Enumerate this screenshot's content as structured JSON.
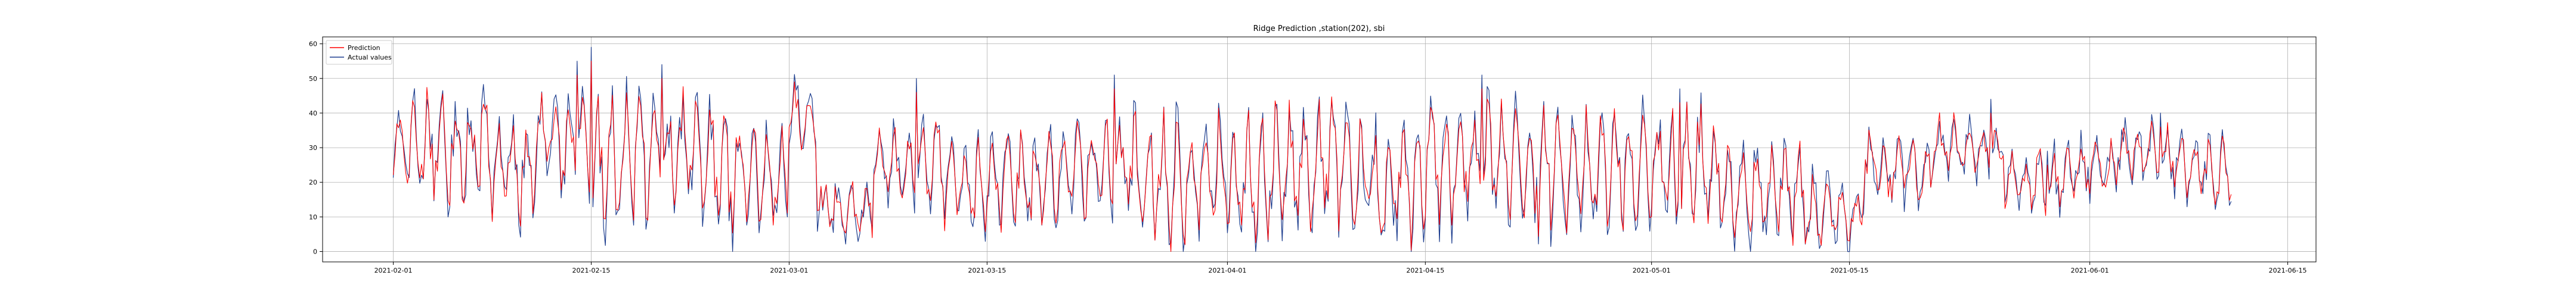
{
  "chart_data": {
    "type": "line",
    "title": "Ridge Prediction ,station(202), sbi",
    "xlabel": "",
    "ylabel": "",
    "x_range": [
      "2021-01-27",
      "2021-06-17"
    ],
    "ylim": [
      -3,
      62
    ],
    "x_ticks": [
      "2021-02-01",
      "2021-02-15",
      "2021-03-01",
      "2021-03-15",
      "2021-04-01",
      "2021-04-15",
      "2021-05-01",
      "2021-05-15",
      "2021-06-01",
      "2021-06-15"
    ],
    "y_ticks": [
      0,
      10,
      20,
      30,
      40,
      50,
      60
    ],
    "grid": true,
    "legend": "top-left",
    "data_start": "2021-02-01",
    "data_end": "2021-06-11",
    "series": [
      {
        "name": "Prediction",
        "color": "#ff0000",
        "segments": [
          {
            "from": "2021-02-01",
            "to": "2021-02-08",
            "level": 30,
            "amp": 14
          },
          {
            "from": "2021-02-08",
            "to": "2021-02-11",
            "level": 24,
            "amp": 13
          },
          {
            "from": "2021-02-11",
            "to": "2021-02-15",
            "level": 32,
            "amp": 12
          },
          {
            "from": "2021-02-15",
            "to": "2021-02-19",
            "level": 27,
            "amp": 18
          },
          {
            "from": "2021-02-19",
            "to": "2021-02-24",
            "level": 28,
            "amp": 15
          },
          {
            "from": "2021-02-24",
            "to": "2021-03-01",
            "level": 22,
            "amp": 16
          },
          {
            "from": "2021-03-01",
            "to": "2021-03-03",
            "level": 38,
            "amp": 9
          },
          {
            "from": "2021-03-03",
            "to": "2021-03-07",
            "level": 12,
            "amp": 7
          },
          {
            "from": "2021-03-07",
            "to": "2021-03-12",
            "level": 26,
            "amp": 10
          },
          {
            "from": "2021-03-12",
            "to": "2021-03-20",
            "level": 20,
            "amp": 13
          },
          {
            "from": "2021-03-20",
            "to": "2021-03-25",
            "level": 24,
            "amp": 12
          },
          {
            "from": "2021-03-25",
            "to": "2021-04-04",
            "level": 22,
            "amp": 17
          },
          {
            "from": "2021-04-04",
            "to": "2021-04-10",
            "level": 26,
            "amp": 16
          },
          {
            "from": "2021-04-10",
            "to": "2021-04-15",
            "level": 20,
            "amp": 15
          },
          {
            "from": "2021-04-15",
            "to": "2021-04-22",
            "level": 27,
            "amp": 17
          },
          {
            "from": "2021-04-22",
            "to": "2021-04-29",
            "level": 25,
            "amp": 16
          },
          {
            "from": "2021-04-29",
            "to": "2021-05-06",
            "level": 24,
            "amp": 16
          },
          {
            "from": "2021-05-06",
            "to": "2021-05-12",
            "level": 17,
            "amp": 12
          },
          {
            "from": "2021-05-12",
            "to": "2021-05-16",
            "level": 12,
            "amp": 8
          },
          {
            "from": "2021-05-16",
            "to": "2021-05-21",
            "level": 24,
            "amp": 8
          },
          {
            "from": "2021-05-21",
            "to": "2021-05-26",
            "level": 30,
            "amp": 7
          },
          {
            "from": "2021-05-26",
            "to": "2021-05-30",
            "level": 20,
            "amp": 7
          },
          {
            "from": "2021-05-30",
            "to": "2021-06-03",
            "level": 24,
            "amp": 7
          },
          {
            "from": "2021-06-03",
            "to": "2021-06-07",
            "level": 28,
            "amp": 7
          },
          {
            "from": "2021-06-07",
            "to": "2021-06-11",
            "level": 24,
            "amp": 9
          }
        ]
      },
      {
        "name": "Actual values",
        "color": "#1f3f8f",
        "segments": [
          {
            "from": "2021-02-01",
            "to": "2021-02-08",
            "level": 30,
            "amp": 16
          },
          {
            "from": "2021-02-08",
            "to": "2021-02-11",
            "level": 24,
            "amp": 15
          },
          {
            "from": "2021-02-11",
            "to": "2021-02-15",
            "level": 32,
            "amp": 14
          },
          {
            "from": "2021-02-15",
            "to": "2021-02-19",
            "level": 27,
            "amp": 20
          },
          {
            "from": "2021-02-19",
            "to": "2021-02-24",
            "level": 28,
            "amp": 17
          },
          {
            "from": "2021-02-24",
            "to": "2021-03-01",
            "level": 22,
            "amp": 18
          },
          {
            "from": "2021-03-01",
            "to": "2021-03-03",
            "level": 38,
            "amp": 10
          },
          {
            "from": "2021-03-03",
            "to": "2021-03-07",
            "level": 12,
            "amp": 8
          },
          {
            "from": "2021-03-07",
            "to": "2021-03-12",
            "level": 26,
            "amp": 11
          },
          {
            "from": "2021-03-12",
            "to": "2021-03-20",
            "level": 20,
            "amp": 15
          },
          {
            "from": "2021-03-20",
            "to": "2021-03-25",
            "level": 24,
            "amp": 14
          },
          {
            "from": "2021-03-25",
            "to": "2021-04-04",
            "level": 22,
            "amp": 19
          },
          {
            "from": "2021-04-04",
            "to": "2021-04-10",
            "level": 26,
            "amp": 18
          },
          {
            "from": "2021-04-10",
            "to": "2021-04-15",
            "level": 20,
            "amp": 17
          },
          {
            "from": "2021-04-15",
            "to": "2021-04-22",
            "level": 27,
            "amp": 19
          },
          {
            "from": "2021-04-22",
            "to": "2021-04-29",
            "level": 25,
            "amp": 18
          },
          {
            "from": "2021-04-29",
            "to": "2021-05-06",
            "level": 24,
            "amp": 18
          },
          {
            "from": "2021-05-06",
            "to": "2021-05-12",
            "level": 17,
            "amp": 14
          },
          {
            "from": "2021-05-12",
            "to": "2021-05-16",
            "level": 12,
            "amp": 10
          },
          {
            "from": "2021-05-16",
            "to": "2021-05-21",
            "level": 24,
            "amp": 9
          },
          {
            "from": "2021-05-21",
            "to": "2021-05-26",
            "level": 30,
            "amp": 8
          },
          {
            "from": "2021-05-26",
            "to": "2021-05-30",
            "level": 20,
            "amp": 8
          },
          {
            "from": "2021-05-30",
            "to": "2021-06-03",
            "level": 24,
            "amp": 8
          },
          {
            "from": "2021-06-03",
            "to": "2021-06-07",
            "level": 28,
            "amp": 8
          },
          {
            "from": "2021-06-07",
            "to": "2021-06-11",
            "level": 24,
            "amp": 10
          }
        ]
      }
    ],
    "annotations": [
      {
        "date": "2021-02-15",
        "value": 59
      },
      {
        "date": "2021-02-14",
        "value": 55
      },
      {
        "date": "2021-02-20",
        "value": 54
      },
      {
        "date": "2021-03-10",
        "value": 50
      },
      {
        "date": "2021-03-24",
        "value": 51
      },
      {
        "date": "2021-04-19",
        "value": 51
      },
      {
        "date": "2021-05-03",
        "value": 47
      },
      {
        "date": "2021-05-25",
        "value": 44
      },
      {
        "date": "2021-05-29",
        "value": 29
      },
      {
        "date": "2021-06-06",
        "value": 40
      }
    ]
  }
}
